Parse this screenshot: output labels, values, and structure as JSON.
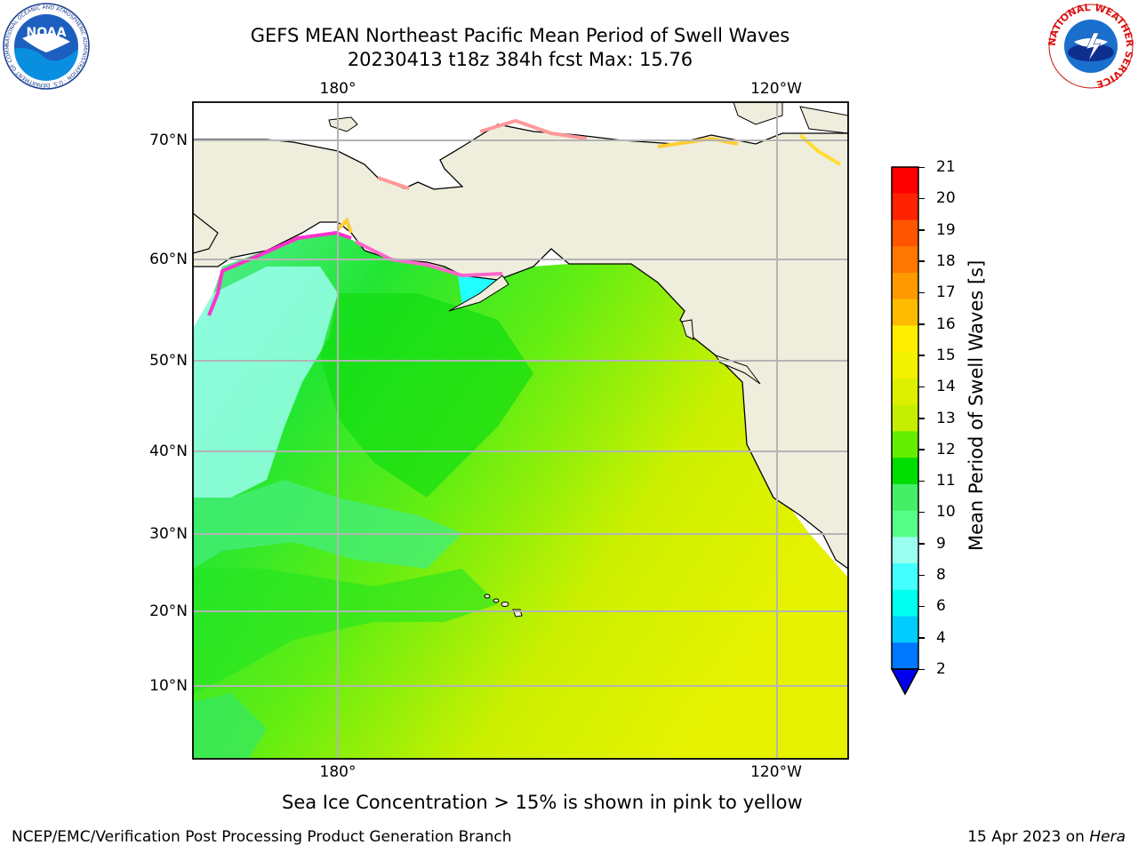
{
  "header": {
    "title_line1": "GEFS MEAN Northeast Pacific Mean Period of Swell Waves",
    "title_line2": "20230413 t18z 384h fcst   Max: 15.76"
  },
  "logos": {
    "left": {
      "text": "NOAA",
      "ring_text": "NATIONAL OCEANIC AND ATMOSPHERIC ADMINISTRATION · U.S. DEPARTMENT OF COMMERCE"
    },
    "right": {
      "ring_text": "NATIONAL WEATHER SERVICE"
    }
  },
  "map": {
    "lon_ticks": [
      "180°",
      "120°W"
    ],
    "lat_ticks": [
      "70°N",
      "60°N",
      "50°N",
      "40°N",
      "30°N",
      "20°N",
      "10°N"
    ],
    "colors": {
      "land": "#efeedd",
      "grid": "#b4b4b4",
      "coast": "#000000",
      "ice": [
        "#ff33cc",
        "#ff9999",
        "#ffcc33",
        "#ffff33"
      ]
    }
  },
  "colorbar": {
    "label": "Mean Period of Swell Waves [s]",
    "ticks": [
      "21",
      "20",
      "19",
      "18",
      "17",
      "16",
      "15",
      "14",
      "13",
      "12",
      "11",
      "10",
      "9",
      "8",
      "6",
      "4",
      "2"
    ],
    "colors_top_to_bottom": [
      "#ff0000",
      "#ff2200",
      "#ff5500",
      "#ff7700",
      "#ff9900",
      "#ffbb00",
      "#ffee00",
      "#f2f200",
      "#ddf000",
      "#c4ef00",
      "#66ee00",
      "#00dd00",
      "#44ee66",
      "#55ff88",
      "#99ffee",
      "#44ffff",
      "#00ffee",
      "#00ccff",
      "#0077ff"
    ],
    "extend_color": "#0000ee"
  },
  "notes": {
    "ice": "Sea Ice Concentration > 15% is shown in pink to yellow"
  },
  "footer": {
    "left": "NCEP/EMC/Verification Post Processing Product Generation Branch",
    "right_prefix": "15 Apr 2023 on ",
    "right_italic": "Hera"
  }
}
